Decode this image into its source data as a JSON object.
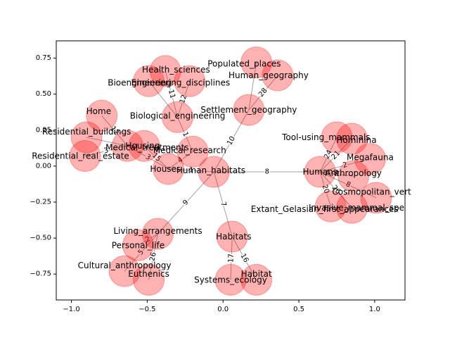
{
  "chart_data": {
    "type": "network",
    "xlim": [
      -1.1,
      1.2
    ],
    "ylim": [
      -0.93,
      0.87
    ],
    "x_ticks": [
      -1.0,
      -0.5,
      0.0,
      0.5,
      1.0
    ],
    "x_tick_labels": [
      "−1.0",
      "−0.5",
      "0.0",
      "0.5",
      "1.0"
    ],
    "y_ticks": [
      -0.75,
      -0.5,
      -0.25,
      0.0,
      0.25,
      0.5,
      0.75
    ],
    "y_tick_labels": [
      "−0.75",
      "−0.50",
      "−0.25",
      "0.00",
      "0.25",
      "0.50",
      "0.75"
    ],
    "node_color": "#ff0000",
    "node_alpha": 0.3,
    "edge_color": "#808080",
    "nodes": [
      {
        "id": "Human_habitats",
        "x": -0.06,
        "y": -0.04
      },
      {
        "id": "Humans",
        "x": 0.64,
        "y": -0.04
      },
      {
        "id": "Tool-using_mammals",
        "x": 0.75,
        "y": 0.2
      },
      {
        "id": "Hominina",
        "x": 0.85,
        "y": 0.19
      },
      {
        "id": "Megafauna",
        "x": 0.97,
        "y": 0.05
      },
      {
        "id": "Anthropology",
        "x": 0.86,
        "y": -0.07
      },
      {
        "id": "Cosmopolitan_vert",
        "x": 1.01,
        "y": -0.22
      },
      {
        "id": "Invasive_mammal_spe",
        "x": 0.85,
        "y": -0.29
      },
      {
        "id": "Extant_Gelasian_first_appearances",
        "x": 0.71,
        "y": -0.28
      },
      {
        "id": "Settlement_geography",
        "x": 0.17,
        "y": 0.39
      },
      {
        "id": "Populated_places",
        "x": 0.22,
        "y": 0.72
      },
      {
        "id": "Human_geography",
        "x": 0.36,
        "y": 0.63
      },
      {
        "id": "Habitats",
        "x": 0.06,
        "y": -0.49
      },
      {
        "id": "Habitat",
        "x": 0.22,
        "y": -0.79
      },
      {
        "id": "Systems_ecology",
        "x": 0.05,
        "y": -0.79
      },
      {
        "id": "Living_arrangements",
        "x": -0.43,
        "y": -0.47
      },
      {
        "id": "Personal_life",
        "x": -0.56,
        "y": -0.55
      },
      {
        "id": "Cultural_anthropology",
        "x": -0.65,
        "y": -0.73
      },
      {
        "id": "Euthenics",
        "x": -0.49,
        "y": -0.79
      },
      {
        "id": "Houses",
        "x": -0.36,
        "y": -0.02
      },
      {
        "id": "Medical_research",
        "x": -0.2,
        "y": 0.1
      },
      {
        "id": "Health_sciences",
        "x": -0.38,
        "y": 0.66
      },
      {
        "id": "Engineering_disciplines",
        "x": -0.22,
        "y": 0.59
      },
      {
        "id": "Bioengineering",
        "x": -0.49,
        "y": 0.59
      },
      {
        "id": "Biological_engineering",
        "x": -0.3,
        "y": 0.34
      },
      {
        "id": "Medical_treatments",
        "x": -0.52,
        "y": 0.14
      },
      {
        "id": "Home",
        "x": -0.8,
        "y": 0.35
      },
      {
        "id": "Residential_buildings",
        "x": -0.9,
        "y": 0.2
      },
      {
        "id": "Residential_real_estate",
        "x": -0.91,
        "y": 0.07
      },
      {
        "id": "Housing",
        "x": -0.63,
        "y": 0.14
      }
    ],
    "node_labels": [
      {
        "text": "Human_habitats",
        "x": -0.08,
        "y": -0.03
      },
      {
        "text": "Humans",
        "x": 0.64,
        "y": -0.04
      },
      {
        "text": "Tool-using_mammals",
        "x": 0.68,
        "y": 0.2
      },
      {
        "text": "Hominina",
        "x": 0.88,
        "y": 0.18
      },
      {
        "text": "Megafauna",
        "x": 0.97,
        "y": 0.06
      },
      {
        "text": "Anthropology",
        "x": 0.86,
        "y": -0.05
      },
      {
        "text": "Cosmopolitan_vert",
        "x": 0.98,
        "y": -0.18
      },
      {
        "text": "Invasive_mammal_spe",
        "x": 0.88,
        "y": -0.29
      },
      {
        "text": "Extant_Gelasian_first_appearances",
        "x": 0.67,
        "y": -0.3
      },
      {
        "text": "Settlement_geography",
        "x": 0.17,
        "y": 0.39
      },
      {
        "text": "Populated_places",
        "x": 0.14,
        "y": 0.71
      },
      {
        "text": "Human_geography",
        "x": 0.3,
        "y": 0.63
      },
      {
        "text": "Habitats",
        "x": 0.07,
        "y": -0.49
      },
      {
        "text": "Habitat",
        "x": 0.22,
        "y": -0.75
      },
      {
        "text": "Systems_ecology",
        "x": 0.05,
        "y": -0.79
      },
      {
        "text": "Living_arrangements",
        "x": -0.43,
        "y": -0.45
      },
      {
        "text": "Personal_life",
        "x": -0.56,
        "y": -0.55
      },
      {
        "text": "Cultural_anthropology",
        "x": -0.65,
        "y": -0.69
      },
      {
        "text": "Euthenics",
        "x": -0.49,
        "y": -0.75
      },
      {
        "text": "Houses",
        "x": -0.38,
        "y": -0.02
      },
      {
        "text": "Medical_research",
        "x": -0.22,
        "y": 0.11
      },
      {
        "text": "Health_sciences",
        "x": -0.31,
        "y": 0.67
      },
      {
        "text": "Engineering_disciplines",
        "x": -0.28,
        "y": 0.58
      },
      {
        "text": "Bioengineering",
        "x": -0.55,
        "y": 0.58
      },
      {
        "text": "Biological_engineering",
        "x": -0.3,
        "y": 0.35
      },
      {
        "text": "Medical_treatments",
        "x": -0.5,
        "y": 0.13
      },
      {
        "text": "Home",
        "x": -0.82,
        "y": 0.38
      },
      {
        "text": "Residential_buildings",
        "x": -0.9,
        "y": 0.24
      },
      {
        "text": "Residential_real_estate",
        "x": -0.94,
        "y": 0.07
      },
      {
        "text": "Housing",
        "x": -0.53,
        "y": 0.14
      }
    ],
    "edges": [
      {
        "source": "Human_habitats",
        "target": "Humans",
        "label": "8"
      },
      {
        "source": "Human_habitats",
        "target": "Houses",
        "label": "1"
      },
      {
        "source": "Human_habitats",
        "target": "Settlement_geography",
        "label": "10"
      },
      {
        "source": "Human_habitats",
        "target": "Habitats",
        "label": "7"
      },
      {
        "source": "Human_habitats",
        "target": "Living_arrangements",
        "label": "9"
      },
      {
        "source": "Settlement_geography",
        "target": "Human_geography",
        "label": "28"
      },
      {
        "source": "Settlement_geography",
        "target": "Populated_places",
        "label": ""
      },
      {
        "source": "Humans",
        "target": "Tool-using_mammals",
        "label": "24"
      },
      {
        "source": "Humans",
        "target": "Hominina",
        "label": "21"
      },
      {
        "source": "Humans",
        "target": "Megafauna",
        "label": "2"
      },
      {
        "source": "Humans",
        "target": "Anthropology",
        "label": "0"
      },
      {
        "source": "Humans",
        "target": "Cosmopolitan_vert",
        "label": "8"
      },
      {
        "source": "Humans",
        "target": "Invasive_mammal_spe",
        "label": "26"
      },
      {
        "source": "Humans",
        "target": "Extant_Gelasian_first_appearances",
        "label": "20"
      },
      {
        "source": "Habitats",
        "target": "Habitat",
        "label": "16"
      },
      {
        "source": "Habitats",
        "target": "Systems_ecology",
        "label": "17"
      },
      {
        "source": "Living_arrangements",
        "target": "Personal_life",
        "label": "2"
      },
      {
        "source": "Living_arrangements",
        "target": "Cultural_anthropology",
        "label": "5"
      },
      {
        "source": "Living_arrangements",
        "target": "Euthenics",
        "label": "26"
      },
      {
        "source": "Houses",
        "target": "Medical_research",
        "label": "4"
      },
      {
        "source": "Houses",
        "target": "Medical_treatments",
        "label": "15"
      },
      {
        "source": "Houses",
        "target": "Housing",
        "label": "3"
      },
      {
        "source": "Medical_research",
        "target": "Biological_engineering",
        "label": "1"
      },
      {
        "source": "Biological_engineering",
        "target": "Health_sciences",
        "label": "11"
      },
      {
        "source": "Biological_engineering",
        "target": "Engineering_disciplines",
        "label": "12"
      },
      {
        "source": "Biological_engineering",
        "target": "Bioengineering",
        "label": ""
      },
      {
        "source": "Housing",
        "target": "Home",
        "label": "12"
      },
      {
        "source": "Housing",
        "target": "Residential_buildings",
        "label": ""
      },
      {
        "source": "Housing",
        "target": "Residential_real_estate",
        "label": "3"
      }
    ]
  }
}
